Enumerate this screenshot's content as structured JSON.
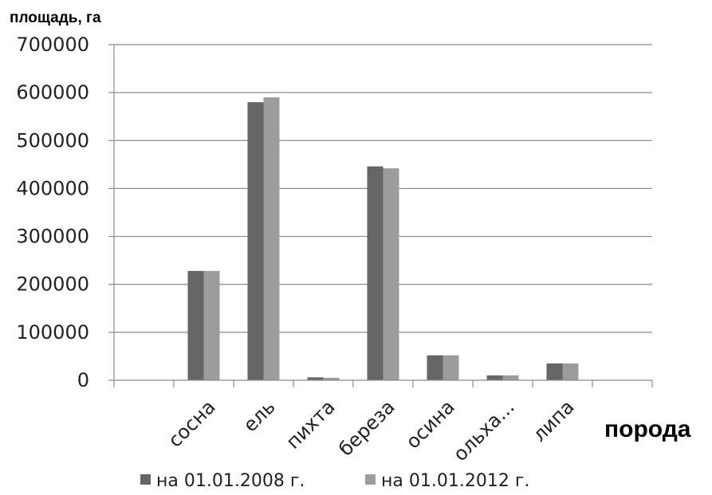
{
  "chart_data": {
    "type": "bar",
    "ylabel": "площадь, га",
    "xlabel": "порода",
    "categories": [
      "",
      "сосна",
      "ель",
      "пихта",
      "береза",
      "осина",
      "ольха...",
      "липа",
      ""
    ],
    "series": [
      {
        "name": "на 01.01.2008 г.",
        "color": "#666666",
        "values": [
          0,
          228000,
          580000,
          6000,
          446000,
          52000,
          10000,
          35000,
          0
        ]
      },
      {
        "name": "на 01.01.2012 г.",
        "color": "#9c9c9c",
        "values": [
          0,
          228000,
          590000,
          5000,
          442000,
          52000,
          10000,
          35000,
          0
        ]
      }
    ],
    "ylim": [
      0,
      700000
    ],
    "yticks": [
      "0",
      "100000",
      "200000",
      "300000",
      "400000",
      "500000",
      "600000",
      "700000"
    ],
    "grid": true,
    "legend_position": "bottom"
  }
}
